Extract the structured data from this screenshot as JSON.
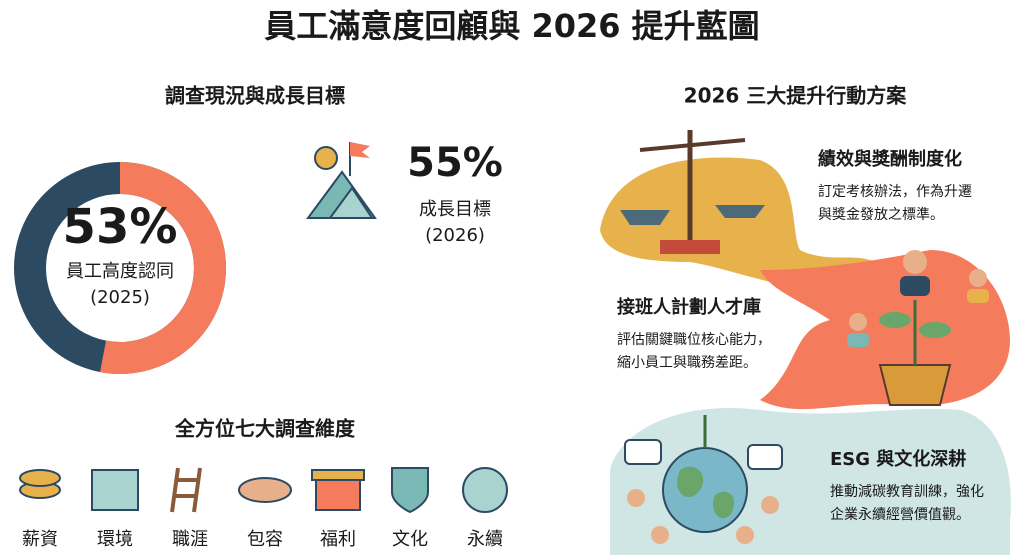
{
  "title": "員工滿意度回顧與 2026 提升藍圖",
  "status": {
    "heading": "調查現況與成長目標",
    "current": {
      "value": 53,
      "label": "53%",
      "caption": "員工高度認同",
      "year": "(2025)"
    },
    "goal": {
      "label": "55%",
      "caption": "成長目標",
      "year": "(2026)"
    }
  },
  "dimensions": {
    "heading": "全方位七大調查維度",
    "items": [
      "薪資",
      "環境",
      "職涯",
      "包容",
      "福利",
      "文化",
      "永續"
    ]
  },
  "actions": {
    "heading": "2026 三大提升行動方案",
    "items": [
      {
        "title": "績效與獎酬制度化",
        "lines": [
          "訂定考核辦法，作為升遷",
          "與獎金發放之標準。"
        ]
      },
      {
        "title": "接班人計劃人才庫",
        "lines": [
          "評估關鍵職位核心能力，",
          "縮小員工與職務差距。"
        ]
      },
      {
        "title": "ESG 與文化深耕",
        "lines": [
          "推動減碳教育訓練，強化",
          "企業永續經營價值觀。"
        ]
      }
    ]
  }
}
